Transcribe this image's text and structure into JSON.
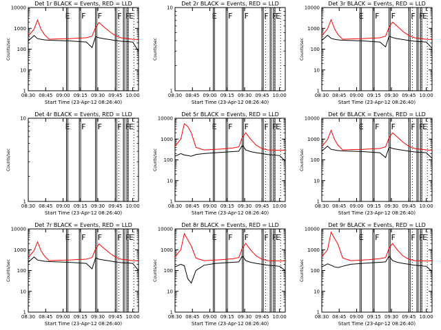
{
  "figure": {
    "background": "#ffffff",
    "axis_color": "#000000",
    "events_color": "#000000",
    "lld_color": "#ff0000"
  },
  "shared": {
    "xlabel": "Start Time (23-Apr-12 08:26:40)",
    "ylabel": "Counts/sec",
    "x_tick_labels": [
      "08:30",
      "08:45",
      "09:00",
      "09:15",
      "09:30",
      "09:45",
      "10:00"
    ],
    "y_tick_labels_log4": [
      "1",
      "10",
      "100",
      "1000",
      "10000"
    ],
    "y_tick_labels_log1": [
      "1",
      "10"
    ]
  },
  "chart_data": [
    {
      "type": "line",
      "title": "Det 1r BLACK = Events, RED = LLD",
      "xlabel": "Start Time (23-Apr-12 08:26:40)",
      "ylabel": "Counts/sec",
      "log_y": true,
      "ylim": [
        1,
        10000
      ],
      "series": [
        {
          "name": "Events",
          "color": "#000000",
          "x": [
            "08:30",
            "08:35",
            "08:38",
            "08:41",
            "08:44",
            "08:48",
            "08:55",
            "09:05",
            "09:10",
            "09:15",
            "09:20",
            "09:25",
            "09:28",
            "09:31",
            "09:35",
            "09:40",
            "09:45",
            "09:50",
            "10:00",
            "10:05"
          ],
          "values": [
            250,
            450,
            320,
            300,
            280,
            270,
            260,
            250,
            240,
            230,
            220,
            120,
            400,
            350,
            320,
            290,
            260,
            240,
            220,
            80
          ]
        },
        {
          "name": "LLD",
          "color": "#ff0000",
          "x": [
            "08:30",
            "08:35",
            "08:38",
            "08:41",
            "08:44",
            "08:48",
            "08:55",
            "09:05",
            "09:10",
            "09:15",
            "09:20",
            "09:25",
            "09:28",
            "09:31",
            "09:35",
            "09:40",
            "09:45",
            "09:50",
            "10:00",
            "10:05"
          ],
          "values": [
            420,
            900,
            2500,
            900,
            500,
            300,
            310,
            320,
            330,
            340,
            350,
            420,
            1100,
            1900,
            1200,
            700,
            450,
            350,
            300,
            290
          ]
        }
      ],
      "markers": [
        "E",
        "F",
        "F",
        "F",
        "F",
        "E"
      ]
    },
    {
      "type": "line",
      "title": "Det 2r BLACK = Events, RED = LLD",
      "xlabel": "Start Time (23-Apr-12 08:26:40)",
      "ylabel": "Counts/sec",
      "log_y": true,
      "ylim": [
        1,
        10
      ],
      "series": [],
      "markers": [
        "E",
        "F",
        "F",
        "F",
        "F",
        "E"
      ]
    },
    {
      "type": "line",
      "title": "Det 3r BLACK = Events, RED = LLD",
      "xlabel": "Start Time (23-Apr-12 08:26:40)",
      "ylabel": "Counts/sec",
      "log_y": true,
      "ylim": [
        1,
        10000
      ],
      "series": [
        {
          "name": "Events",
          "color": "#000000",
          "x": [
            "08:30",
            "08:35",
            "08:38",
            "08:41",
            "08:44",
            "08:48",
            "08:55",
            "09:05",
            "09:10",
            "09:15",
            "09:20",
            "09:25",
            "09:28",
            "09:31",
            "09:35",
            "09:40",
            "09:45",
            "09:50",
            "10:00",
            "10:05"
          ],
          "values": [
            260,
            470,
            330,
            300,
            280,
            270,
            260,
            250,
            240,
            230,
            220,
            130,
            420,
            360,
            320,
            290,
            260,
            240,
            220,
            110
          ]
        },
        {
          "name": "LLD",
          "color": "#ff0000",
          "x": [
            "08:30",
            "08:35",
            "08:38",
            "08:41",
            "08:44",
            "08:48",
            "08:55",
            "09:05",
            "09:10",
            "09:15",
            "09:20",
            "09:25",
            "09:28",
            "09:31",
            "09:35",
            "09:40",
            "09:45",
            "09:50",
            "10:00",
            "10:05"
          ],
          "values": [
            430,
            950,
            2600,
            950,
            500,
            300,
            310,
            320,
            330,
            340,
            350,
            420,
            1150,
            2000,
            1250,
            700,
            450,
            350,
            300,
            290
          ]
        }
      ],
      "markers": [
        "E",
        "F",
        "F",
        "F",
        "F",
        "E"
      ]
    },
    {
      "type": "line",
      "title": "Det 4r BLACK = Events, RED = LLD",
      "xlabel": "Start Time (23-Apr-12 08:26:40)",
      "ylabel": "Counts/sec",
      "log_y": true,
      "ylim": [
        1,
        10
      ],
      "series": [],
      "markers": [
        "E",
        "F",
        "F",
        "F",
        "F",
        "E"
      ]
    },
    {
      "type": "line",
      "title": "Det 5r BLACK = Events, RED = LLD",
      "xlabel": "Start Time (23-Apr-12 08:26:40)",
      "ylabel": "Counts/sec",
      "log_y": true,
      "ylim": [
        1,
        10000
      ],
      "series": [
        {
          "name": "Events",
          "color": "#000000",
          "x": [
            "08:30",
            "08:35",
            "08:38",
            "08:41",
            "08:44",
            "08:48",
            "08:55",
            "09:05",
            "09:10",
            "09:15",
            "09:20",
            "09:25",
            "09:28",
            "09:31",
            "09:35",
            "09:40",
            "09:45",
            "09:50",
            "10:00",
            "10:05"
          ],
          "values": [
            150,
            200,
            170,
            160,
            150,
            180,
            200,
            220,
            230,
            240,
            250,
            260,
            500,
            300,
            250,
            220,
            200,
            180,
            160,
            90
          ]
        },
        {
          "name": "LLD",
          "color": "#ff0000",
          "x": [
            "08:30",
            "08:35",
            "08:38",
            "08:41",
            "08:44",
            "08:48",
            "08:55",
            "09:05",
            "09:10",
            "09:15",
            "09:20",
            "09:25",
            "09:28",
            "09:31",
            "09:35",
            "09:40",
            "09:45",
            "09:50",
            "10:00",
            "10:05"
          ],
          "values": [
            450,
            1000,
            5500,
            4000,
            2000,
            400,
            300,
            320,
            330,
            350,
            370,
            420,
            1200,
            2000,
            1000,
            500,
            350,
            300,
            290,
            290
          ]
        }
      ],
      "markers": [
        "E",
        "F",
        "F",
        "F",
        "F",
        "E"
      ]
    },
    {
      "type": "line",
      "title": "Det 6r BLACK = Events, RED = LLD",
      "xlabel": "Start Time (23-Apr-12 08:26:40)",
      "ylabel": "Counts/sec",
      "log_y": true,
      "ylim": [
        1,
        10000
      ],
      "series": [
        {
          "name": "Events",
          "color": "#000000",
          "x": [
            "08:30",
            "08:35",
            "08:38",
            "08:41",
            "08:44",
            "08:48",
            "08:55",
            "09:05",
            "09:10",
            "09:15",
            "09:20",
            "09:25",
            "09:28",
            "09:31",
            "09:35",
            "09:40",
            "09:45",
            "09:50",
            "10:00",
            "10:05"
          ],
          "values": [
            260,
            460,
            320,
            300,
            280,
            270,
            260,
            250,
            240,
            230,
            220,
            130,
            410,
            350,
            320,
            290,
            260,
            240,
            220,
            120
          ]
        },
        {
          "name": "LLD",
          "color": "#ff0000",
          "x": [
            "08:30",
            "08:35",
            "08:38",
            "08:41",
            "08:44",
            "08:48",
            "08:55",
            "09:05",
            "09:10",
            "09:15",
            "09:20",
            "09:25",
            "09:28",
            "09:31",
            "09:35",
            "09:40",
            "09:45",
            "09:50",
            "10:00",
            "10:05"
          ],
          "values": [
            430,
            950,
            2600,
            950,
            500,
            300,
            310,
            320,
            330,
            340,
            350,
            420,
            1150,
            2000,
            1250,
            700,
            450,
            350,
            300,
            290
          ]
        }
      ],
      "markers": [
        "E",
        "F",
        "F",
        "F",
        "F",
        "E"
      ]
    },
    {
      "type": "line",
      "title": "Det 7r BLACK = Events, RED = LLD",
      "xlabel": "Start Time (23-Apr-12 08:26:40)",
      "ylabel": "Counts/sec",
      "log_y": true,
      "ylim": [
        1,
        10000
      ],
      "series": [
        {
          "name": "Events",
          "color": "#000000",
          "x": [
            "08:30",
            "08:35",
            "08:38",
            "08:41",
            "08:44",
            "08:48",
            "08:55",
            "09:05",
            "09:10",
            "09:15",
            "09:20",
            "09:25",
            "09:28",
            "09:31",
            "09:35",
            "09:40",
            "09:45",
            "09:50",
            "10:00",
            "10:05"
          ],
          "values": [
            250,
            450,
            320,
            300,
            280,
            270,
            260,
            250,
            240,
            230,
            220,
            120,
            400,
            350,
            320,
            290,
            260,
            240,
            220,
            100
          ]
        },
        {
          "name": "LLD",
          "color": "#ff0000",
          "x": [
            "08:30",
            "08:35",
            "08:38",
            "08:41",
            "08:44",
            "08:48",
            "08:55",
            "09:05",
            "09:10",
            "09:15",
            "09:20",
            "09:25",
            "09:28",
            "09:31",
            "09:35",
            "09:40",
            "09:45",
            "09:50",
            "10:00",
            "10:05"
          ],
          "values": [
            420,
            900,
            2400,
            900,
            500,
            300,
            310,
            320,
            330,
            340,
            350,
            420,
            1100,
            1900,
            1200,
            700,
            450,
            350,
            300,
            290
          ]
        }
      ],
      "markers": [
        "E",
        "F",
        "F",
        "F",
        "F",
        "E"
      ]
    },
    {
      "type": "line",
      "title": "Det 8r BLACK = Events, RED = LLD",
      "xlabel": "Start Time (23-Apr-12 08:26:40)",
      "ylabel": "Counts/sec",
      "log_y": true,
      "ylim": [
        1,
        10000
      ],
      "series": [
        {
          "name": "Events",
          "color": "#000000",
          "x": [
            "08:30",
            "08:35",
            "08:38",
            "08:41",
            "08:44",
            "08:48",
            "08:55",
            "09:05",
            "09:10",
            "09:15",
            "09:20",
            "09:25",
            "09:28",
            "09:31",
            "09:35",
            "09:40",
            "09:45",
            "09:50",
            "10:00",
            "10:05"
          ],
          "values": [
            150,
            200,
            170,
            40,
            25,
            100,
            180,
            220,
            230,
            240,
            250,
            260,
            500,
            300,
            250,
            220,
            200,
            180,
            160,
            100
          ]
        },
        {
          "name": "LLD",
          "color": "#ff0000",
          "x": [
            "08:30",
            "08:35",
            "08:38",
            "08:41",
            "08:44",
            "08:48",
            "08:55",
            "09:05",
            "09:10",
            "09:15",
            "09:20",
            "09:25",
            "09:28",
            "09:31",
            "09:35",
            "09:40",
            "09:45",
            "09:50",
            "10:00",
            "10:05"
          ],
          "values": [
            450,
            1000,
            6000,
            3000,
            1500,
            400,
            300,
            320,
            330,
            350,
            370,
            420,
            1200,
            2000,
            1000,
            500,
            350,
            300,
            290,
            290
          ]
        }
      ],
      "markers": [
        "E",
        "F",
        "F",
        "F",
        "F",
        "E"
      ]
    },
    {
      "type": "line",
      "title": "Det 9r BLACK = Events, RED = LLD",
      "xlabel": "Start Time (23-Apr-12 08:26:40)",
      "ylabel": "Counts/sec",
      "log_y": true,
      "ylim": [
        1,
        10000
      ],
      "series": [
        {
          "name": "Events",
          "color": "#000000",
          "x": [
            "08:30",
            "08:35",
            "08:38",
            "08:41",
            "08:44",
            "08:48",
            "08:55",
            "09:05",
            "09:10",
            "09:15",
            "09:20",
            "09:25",
            "09:28",
            "09:31",
            "09:35",
            "09:40",
            "09:45",
            "09:50",
            "10:00",
            "10:05"
          ],
          "values": [
            150,
            210,
            180,
            150,
            140,
            160,
            200,
            220,
            230,
            240,
            250,
            260,
            500,
            300,
            250,
            220,
            200,
            180,
            160,
            90
          ]
        },
        {
          "name": "LLD",
          "color": "#ff0000",
          "x": [
            "08:30",
            "08:35",
            "08:38",
            "08:41",
            "08:44",
            "08:48",
            "08:55",
            "09:05",
            "09:10",
            "09:15",
            "09:20",
            "09:25",
            "09:28",
            "09:31",
            "09:35",
            "09:40",
            "09:45",
            "09:50",
            "10:00",
            "10:05"
          ],
          "values": [
            450,
            1000,
            7000,
            3500,
            1800,
            400,
            300,
            320,
            330,
            350,
            370,
            420,
            1200,
            2000,
            1000,
            500,
            350,
            300,
            290,
            290
          ]
        }
      ],
      "markers": [
        "E",
        "F",
        "F",
        "F",
        "F",
        "E"
      ]
    }
  ]
}
